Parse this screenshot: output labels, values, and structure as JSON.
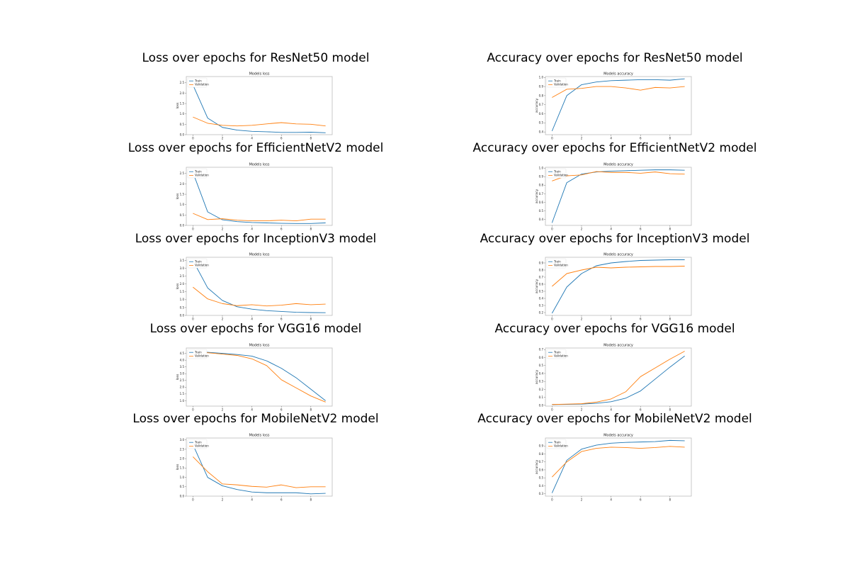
{
  "figure": {
    "background": "#ffffff"
  },
  "colors": {
    "train": "#1f77b4",
    "validation": "#ff7f0e",
    "frame": "#bdbdbd"
  },
  "legend": {
    "position": "upper-left",
    "labels": [
      "Train",
      "Validation"
    ]
  },
  "chart_data": [
    {
      "type": "line",
      "panel_title": "Loss over epochs for ResNet50 model",
      "title": "Models loss",
      "xlabel": "",
      "ylabel": "loss",
      "x": [
        0,
        1,
        2,
        3,
        4,
        5,
        6,
        7,
        8,
        9
      ],
      "xlim": [
        -0.45,
        9.45
      ],
      "ylim": [
        0,
        2.8
      ],
      "xticks": [
        0,
        2,
        4,
        6,
        8
      ],
      "yticks": [
        0.0,
        0.5,
        1.0,
        1.5,
        2.0,
        2.5
      ],
      "series": [
        {
          "name": "Train",
          "values": [
            2.4,
            0.8,
            0.35,
            0.22,
            0.16,
            0.14,
            0.11,
            0.11,
            0.12,
            0.09
          ]
        },
        {
          "name": "Validation",
          "values": [
            0.85,
            0.55,
            0.45,
            0.42,
            0.45,
            0.52,
            0.58,
            0.52,
            0.5,
            0.42
          ]
        }
      ]
    },
    {
      "type": "line",
      "panel_title": "Accuracy over epochs for ResNet50 model",
      "title": "Models accuracy",
      "xlabel": "",
      "ylabel": "accuracy",
      "x": [
        0,
        1,
        2,
        3,
        4,
        5,
        6,
        7,
        8,
        9
      ],
      "xlim": [
        -0.45,
        9.45
      ],
      "ylim": [
        0.37,
        1.01
      ],
      "xticks": [
        0,
        2,
        4,
        6,
        8
      ],
      "yticks": [
        0.4,
        0.5,
        0.6,
        0.7,
        0.8,
        0.9,
        1.0
      ],
      "series": [
        {
          "name": "Train",
          "values": [
            0.41,
            0.8,
            0.92,
            0.95,
            0.965,
            0.97,
            0.975,
            0.975,
            0.97,
            0.985
          ]
        },
        {
          "name": "Validation",
          "values": [
            0.78,
            0.87,
            0.88,
            0.9,
            0.9,
            0.885,
            0.86,
            0.89,
            0.885,
            0.9
          ]
        }
      ]
    },
    {
      "type": "line",
      "panel_title": "Loss over epochs for EfficientNetV2 model",
      "title": "Models loss",
      "xlabel": "",
      "ylabel": "loss",
      "x": [
        0,
        1,
        2,
        3,
        4,
        5,
        6,
        7,
        8,
        9
      ],
      "xlim": [
        -0.45,
        9.45
      ],
      "ylim": [
        0,
        2.8
      ],
      "xticks": [
        0,
        2,
        4,
        6,
        8
      ],
      "yticks": [
        0.0,
        0.5,
        1.0,
        1.5,
        2.0,
        2.5
      ],
      "series": [
        {
          "name": "Train",
          "values": [
            2.55,
            0.65,
            0.27,
            0.18,
            0.14,
            0.12,
            0.1,
            0.09,
            0.09,
            0.12
          ]
        },
        {
          "name": "Validation",
          "values": [
            0.58,
            0.28,
            0.32,
            0.25,
            0.22,
            0.22,
            0.25,
            0.22,
            0.3,
            0.3
          ]
        }
      ]
    },
    {
      "type": "line",
      "panel_title": "Accuracy over epochs for EfficientNetV2 model",
      "title": "Models accuracy",
      "xlabel": "",
      "ylabel": "accuracy",
      "x": [
        0,
        1,
        2,
        3,
        4,
        5,
        6,
        7,
        8,
        9
      ],
      "xlim": [
        -0.45,
        9.45
      ],
      "ylim": [
        0.33,
        1.01
      ],
      "xticks": [
        0,
        2,
        4,
        6,
        8
      ],
      "yticks": [
        0.4,
        0.5,
        0.6,
        0.7,
        0.8,
        0.9,
        1.0
      ],
      "series": [
        {
          "name": "Train",
          "values": [
            0.36,
            0.83,
            0.93,
            0.955,
            0.965,
            0.97,
            0.975,
            0.98,
            0.98,
            0.975
          ]
        },
        {
          "name": "Validation",
          "values": [
            0.85,
            0.91,
            0.92,
            0.96,
            0.95,
            0.95,
            0.94,
            0.955,
            0.935,
            0.93
          ]
        }
      ]
    },
    {
      "type": "line",
      "panel_title": "Loss over epochs for InceptionV3 model",
      "title": "Models loss",
      "xlabel": "",
      "ylabel": "loss",
      "x": [
        0,
        1,
        2,
        3,
        4,
        5,
        6,
        7,
        8,
        9
      ],
      "xlim": [
        -0.45,
        9.45
      ],
      "ylim": [
        0,
        3.7
      ],
      "xticks": [
        0,
        2,
        4,
        6,
        8
      ],
      "yticks": [
        0.0,
        0.5,
        1.0,
        1.5,
        2.0,
        2.5,
        3.0,
        3.5
      ],
      "series": [
        {
          "name": "Train",
          "values": [
            3.5,
            1.75,
            0.95,
            0.55,
            0.4,
            0.3,
            0.25,
            0.2,
            0.18,
            0.17
          ]
        },
        {
          "name": "Validation",
          "values": [
            1.8,
            1.05,
            0.75,
            0.62,
            0.68,
            0.6,
            0.65,
            0.75,
            0.68,
            0.72
          ]
        }
      ]
    },
    {
      "type": "line",
      "panel_title": "Accuracy over epochs for InceptionV3 model",
      "title": "Models accuracy",
      "xlabel": "",
      "ylabel": "accuracy",
      "x": [
        0,
        1,
        2,
        3,
        4,
        5,
        6,
        7,
        8,
        9
      ],
      "xlim": [
        -0.45,
        9.45
      ],
      "ylim": [
        0.16,
        0.98
      ],
      "xticks": [
        0,
        2,
        4,
        6,
        8
      ],
      "yticks": [
        0.2,
        0.3,
        0.4,
        0.5,
        0.6,
        0.7,
        0.8,
        0.9
      ],
      "series": [
        {
          "name": "Train",
          "values": [
            0.19,
            0.56,
            0.75,
            0.86,
            0.9,
            0.92,
            0.935,
            0.94,
            0.945,
            0.945
          ]
        },
        {
          "name": "Validation",
          "values": [
            0.57,
            0.75,
            0.8,
            0.84,
            0.83,
            0.84,
            0.845,
            0.85,
            0.85,
            0.855
          ]
        }
      ]
    },
    {
      "type": "line",
      "panel_title": "Loss over epochs for VGG16 model",
      "title": "Models loss",
      "xlabel": "",
      "ylabel": "loss",
      "x": [
        0,
        1,
        2,
        3,
        4,
        5,
        6,
        7,
        8,
        9
      ],
      "xlim": [
        -0.45,
        9.45
      ],
      "ylim": [
        0.6,
        4.9
      ],
      "xticks": [
        0,
        2,
        4,
        6,
        8
      ],
      "yticks": [
        1.0,
        1.5,
        2.0,
        2.5,
        3.0,
        3.5,
        4.0,
        4.5
      ],
      "series": [
        {
          "name": "Train",
          "values": [
            4.6,
            4.58,
            4.5,
            4.42,
            4.3,
            3.95,
            3.4,
            2.7,
            1.85,
            1.0
          ]
        },
        {
          "name": "Validation",
          "values": [
            4.6,
            4.55,
            4.45,
            4.35,
            4.1,
            3.6,
            2.55,
            1.95,
            1.35,
            0.9
          ]
        }
      ]
    },
    {
      "type": "line",
      "panel_title": "Accuracy over epochs for VGG16 model",
      "title": "Models accuracy",
      "xlabel": "",
      "ylabel": "accuracy",
      "x": [
        0,
        1,
        2,
        3,
        4,
        5,
        6,
        7,
        8,
        9
      ],
      "xlim": [
        -0.45,
        9.45
      ],
      "ylim": [
        -0.01,
        0.72
      ],
      "xticks": [
        0,
        2,
        4,
        6,
        8
      ],
      "yticks": [
        0.0,
        0.1,
        0.2,
        0.3,
        0.4,
        0.5,
        0.6,
        0.7
      ],
      "series": [
        {
          "name": "Train",
          "values": [
            0.01,
            0.012,
            0.015,
            0.025,
            0.045,
            0.09,
            0.18,
            0.33,
            0.48,
            0.62
          ]
        },
        {
          "name": "Validation",
          "values": [
            0.01,
            0.015,
            0.02,
            0.04,
            0.08,
            0.17,
            0.36,
            0.47,
            0.58,
            0.68
          ]
        }
      ]
    },
    {
      "type": "line",
      "panel_title": "Loss over epochs for MobileNetV2 model",
      "title": "Models loss",
      "xlabel": "",
      "ylabel": "loss",
      "x": [
        0,
        1,
        2,
        3,
        4,
        5,
        6,
        7,
        8,
        9
      ],
      "xlim": [
        -0.45,
        9.45
      ],
      "ylim": [
        0,
        3.1
      ],
      "xticks": [
        0,
        2,
        4,
        6,
        8
      ],
      "yticks": [
        0.0,
        0.5,
        1.0,
        1.5,
        2.0,
        2.5,
        3.0
      ],
      "series": [
        {
          "name": "Train",
          "values": [
            2.75,
            1.0,
            0.55,
            0.35,
            0.22,
            0.18,
            0.18,
            0.18,
            0.12,
            0.15
          ]
        },
        {
          "name": "Validation",
          "values": [
            2.1,
            1.3,
            0.65,
            0.6,
            0.52,
            0.48,
            0.6,
            0.45,
            0.5,
            0.5
          ]
        }
      ]
    },
    {
      "type": "line",
      "panel_title": "Accuracy over epochs for MobileNetV2 model",
      "title": "Models accuracy",
      "xlabel": "",
      "ylabel": "accuracy",
      "x": [
        0,
        1,
        2,
        3,
        4,
        5,
        6,
        7,
        8,
        9
      ],
      "xlim": [
        -0.45,
        9.45
      ],
      "ylim": [
        0.27,
        1.0
      ],
      "xticks": [
        0,
        2,
        4,
        6,
        8
      ],
      "yticks": [
        0.3,
        0.4,
        0.5,
        0.6,
        0.7,
        0.8,
        0.9
      ],
      "series": [
        {
          "name": "Train",
          "values": [
            0.31,
            0.72,
            0.86,
            0.91,
            0.935,
            0.945,
            0.95,
            0.955,
            0.97,
            0.965
          ]
        },
        {
          "name": "Validation",
          "values": [
            0.51,
            0.7,
            0.83,
            0.87,
            0.885,
            0.88,
            0.87,
            0.88,
            0.895,
            0.885
          ]
        }
      ]
    }
  ]
}
